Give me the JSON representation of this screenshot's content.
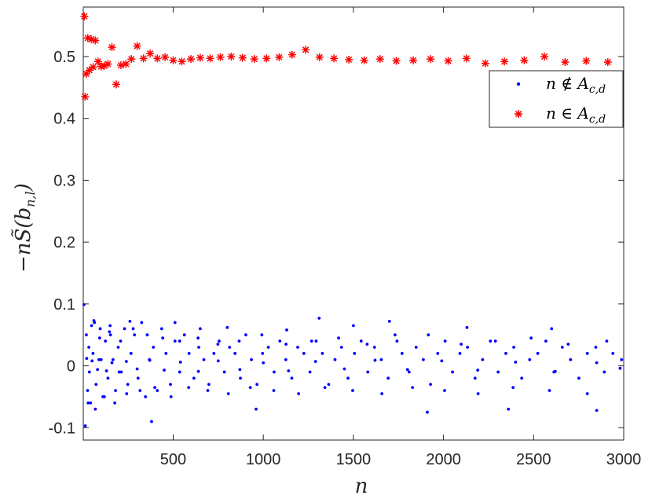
{
  "chart_data": {
    "type": "scatter",
    "xlabel": "n",
    "ylabel": "−nS̃(b",
    "ylabel_sub": "n,l",
    "ylabel_close": ")",
    "xlim": [
      1,
      3000
    ],
    "ylim": [
      -0.12,
      0.58
    ],
    "xticks": [
      500,
      1000,
      1500,
      2000,
      2500,
      3000
    ],
    "xtick_labels": [
      "500",
      "1000",
      "1500",
      "2000",
      "2500",
      "3000"
    ],
    "yticks": [
      -0.1,
      0,
      0.1,
      0.2,
      0.3,
      0.4,
      0.5
    ],
    "ytick_labels": [
      "-0.1",
      "0",
      "0.1",
      "0.2",
      "0.3",
      "0.4",
      "0.5"
    ],
    "grid": false,
    "legend_position": "top-right",
    "series": [
      {
        "name": "n ∉ A",
        "name_sub": "c,d",
        "marker": "dot",
        "color": "#0000ff",
        "description_note": "",
        "x": [
          5,
          18,
          25,
          32,
          41,
          55,
          63,
          72,
          88,
          95,
          110,
          124,
          138,
          152,
          166,
          180,
          195,
          212,
          230,
          248,
          266,
          285,
          305,
          325,
          346,
          368,
          390,
          412,
          436,
          460,
          485,
          510,
          536,
          562,
          588,
          615,
          642,
          670,
          698,
          726,
          755,
          784,
          813,
          843,
          873,
          903,
          934,
          965,
          996,
          1028,
          1060,
          1092,
          1125,
          1158,
          1191,
          1225,
          1259,
          1293,
          1328,
          1363,
          1398,
          1434,
          1470,
          1506,
          1543,
          1580,
          1617,
          1655,
          1693,
          1731,
          1770,
          1809,
          1848,
          1888,
          1928,
          1968,
          2009,
          2050,
          2091,
          2133,
          2175,
          2217,
          2260,
          2303,
          2346,
          2390,
          2434,
          2478,
          2523,
          2568,
          2613,
          2659,
          2705,
          2751,
          2798,
          2845,
          2892,
          2940,
          2988,
          12,
          28,
          47,
          68,
          92,
          118,
          146,
          176,
          208,
          242,
          278,
          316,
          356,
          398,
          442,
          488,
          536,
          586,
          638,
          692,
          748,
          806,
          866,
          928,
          992,
          1058,
          1126,
          1196,
          1268,
          1342,
          1418,
          1496,
          1576,
          1658,
          1742,
          1828,
          1916,
          2006,
          2098,
          2192,
          2288,
          2386,
          2486,
          2588,
          2692,
          2798,
          2906,
          60,
          150,
          260,
          380,
          510,
          650,
          800,
          960,
          1130,
          1310,
          1500,
          1700,
          1910,
          2130,
          2360,
          2600,
          2850,
          20,
          35,
          50,
          80,
          100,
          130,
          160,
          200,
          240,
          300,
          370,
          450,
          540,
          640,
          750,
          870,
          1000,
          1140,
          1290,
          1450,
          1620,
          1800,
          1990,
          2190,
          2400,
          2620,
          2850,
          2980
        ],
        "y": [
          0.099,
          0.05,
          -0.04,
          0.03,
          -0.06,
          0.02,
          0.07,
          -0.03,
          0.01,
          0.06,
          -0.05,
          0.04,
          -0.02,
          0.05,
          0.01,
          -0.04,
          0.03,
          -0.01,
          0.06,
          -0.03,
          0.02,
          0.05,
          -0.02,
          0.07,
          -0.05,
          0.01,
          0.03,
          -0.04,
          0.06,
          0.02,
          -0.03,
          0.04,
          -0.01,
          0.05,
          0.02,
          -0.02,
          0.03,
          0.01,
          -0.03,
          0.02,
          0.04,
          -0.01,
          0.03,
          0.02,
          -0.02,
          0.05,
          0.01,
          -0.03,
          0.02,
          0.03,
          -0.01,
          0.04,
          0.01,
          -0.02,
          0.03,
          0.02,
          -0.01,
          0.04,
          0.02,
          -0.03,
          0.01,
          0.03,
          -0.02,
          0.02,
          0.04,
          -0.01,
          0.03,
          0.01,
          -0.02,
          0.05,
          0.02,
          -0.01,
          0.03,
          0.01,
          -0.03,
          0.02,
          0.04,
          -0.01,
          0.02,
          0.03,
          -0.02,
          0.01,
          0.04,
          -0.01,
          0.02,
          0.03,
          -0.02,
          0.01,
          0.02,
          0.04,
          -0.01,
          0.03,
          0.01,
          -0.02,
          0.02,
          0.03,
          -0.01,
          0.02,
          0.01,
          -0.097,
          -0.06,
          0.065,
          -0.07,
          0.045,
          -0.05,
          0.055,
          -0.06,
          0.04,
          -0.045,
          0.06,
          -0.04,
          0.05,
          -0.035,
          0.045,
          -0.05,
          0.04,
          -0.035,
          0.045,
          -0.04,
          0.035,
          -0.045,
          0.04,
          -0.035,
          0.05,
          -0.04,
          0.035,
          -0.045,
          0.04,
          -0.035,
          0.045,
          -0.04,
          0.035,
          -0.045,
          0.04,
          -0.035,
          0.05,
          -0.04,
          0.035,
          -0.045,
          0.04,
          -0.035,
          0.045,
          -0.04,
          0.035,
          -0.045,
          0.04,
          0.073,
          0.065,
          0.072,
          -0.09,
          0.07,
          0.06,
          0.062,
          -0.07,
          0.058,
          0.077,
          0.065,
          0.072,
          -0.075,
          0.062,
          -0.07,
          0.06,
          -0.072,
          0.012,
          -0.01,
          0.008,
          -0.006,
          0.01,
          -0.008,
          0.005,
          -0.01,
          0.007,
          -0.005,
          0.009,
          -0.007,
          0.006,
          -0.009,
          0.008,
          -0.006,
          0.005,
          -0.008,
          0.007,
          -0.005,
          0.009,
          -0.006,
          0.008,
          -0.007,
          0.006,
          -0.009,
          0.005,
          -0.004
        ]
      },
      {
        "name": "n ∈ A",
        "name_sub": "c,d",
        "marker": "asterisk",
        "color": "#ff0000",
        "x": [
          7,
          11,
          18,
          26,
          35,
          45,
          56,
          68,
          83,
          100,
          118,
          138,
          160,
          184,
          210,
          238,
          268,
          300,
          335,
          372,
          412,
          455,
          500,
          548,
          598,
          650,
          705,
          762,
          822,
          885,
          950,
          1018,
          1088,
          1160,
          1235,
          1312,
          1392,
          1475,
          1560,
          1648,
          1738,
          1832,
          1928,
          2026,
          2128,
          2232,
          2338,
          2448,
          2560,
          2675,
          2792,
          2912
        ],
        "y": [
          0.565,
          0.435,
          0.472,
          0.53,
          0.478,
          0.528,
          0.483,
          0.526,
          0.492,
          0.484,
          0.485,
          0.488,
          0.515,
          0.455,
          0.486,
          0.488,
          0.496,
          0.517,
          0.497,
          0.505,
          0.497,
          0.499,
          0.494,
          0.492,
          0.496,
          0.498,
          0.497,
          0.499,
          0.5,
          0.498,
          0.496,
          0.497,
          0.499,
          0.503,
          0.511,
          0.499,
          0.497,
          0.495,
          0.494,
          0.496,
          0.493,
          0.494,
          0.496,
          0.493,
          0.497,
          0.489,
          0.492,
          0.494,
          0.5,
          0.491,
          0.493,
          0.491
        ]
      }
    ]
  }
}
